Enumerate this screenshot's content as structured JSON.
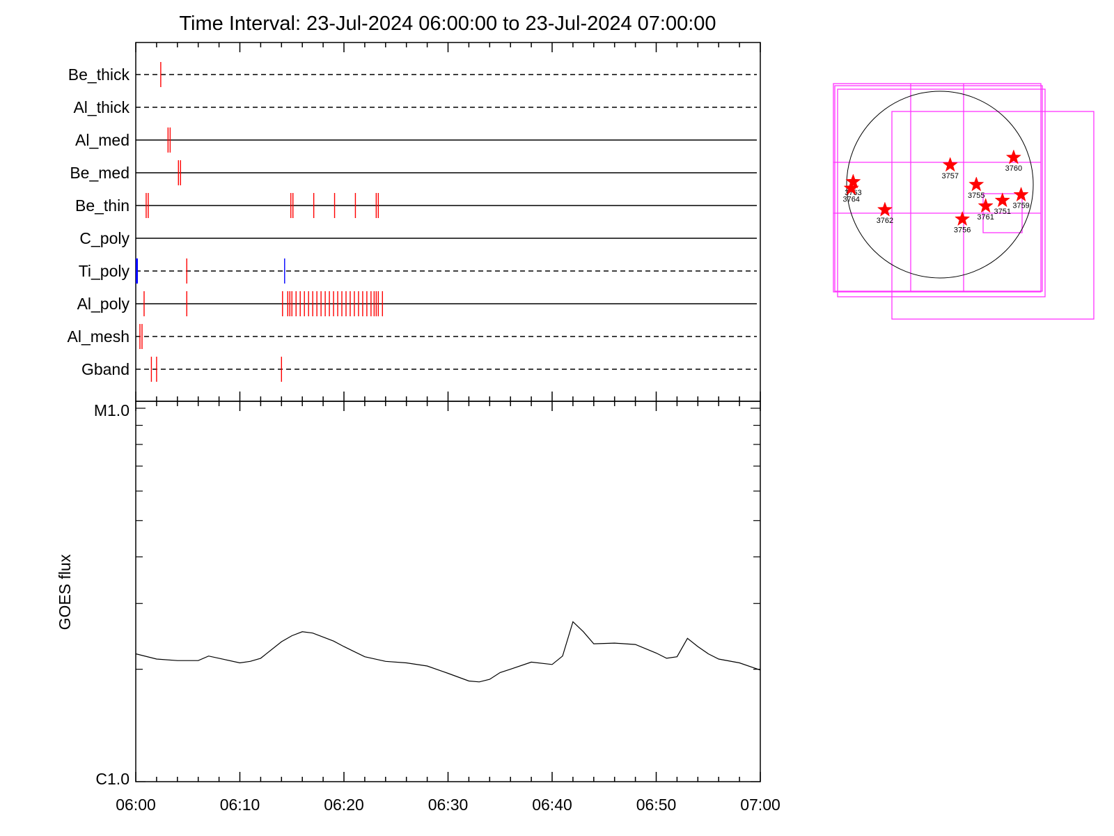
{
  "title": "Time Interval: 23-Jul-2024 06:00:00 to 23-Jul-2024 07:00:00",
  "chart_data": [
    {
      "type": "event-raster",
      "x_range_minutes": [
        0,
        60
      ],
      "x_tick_labels": [
        "06:00",
        "06:10",
        "06:20",
        "06:30",
        "06:40",
        "06:50",
        "07:00"
      ],
      "channels": [
        {
          "name": "Be_thick",
          "line": "dashed",
          "events": [
            {
              "t": 2.4,
              "color": "red"
            }
          ]
        },
        {
          "name": "Al_thick",
          "line": "dashed",
          "events": []
        },
        {
          "name": "Al_med",
          "line": "solid",
          "events": [
            {
              "t": 3.1,
              "color": "red"
            },
            {
              "t": 3.3,
              "color": "red"
            }
          ]
        },
        {
          "name": "Be_med",
          "line": "solid",
          "events": [
            {
              "t": 4.1,
              "color": "red"
            },
            {
              "t": 4.3,
              "color": "red"
            }
          ]
        },
        {
          "name": "Be_thin",
          "line": "solid",
          "events": [
            {
              "t": 1.0,
              "color": "red"
            },
            {
              "t": 1.2,
              "color": "red"
            },
            {
              "t": 14.9,
              "color": "red"
            },
            {
              "t": 15.1,
              "color": "red"
            },
            {
              "t": 17.1,
              "color": "red"
            },
            {
              "t": 19.1,
              "color": "red"
            },
            {
              "t": 21.1,
              "color": "red"
            },
            {
              "t": 23.1,
              "color": "red"
            },
            {
              "t": 23.3,
              "color": "red"
            }
          ]
        },
        {
          "name": "C_poly",
          "line": "solid",
          "events": []
        },
        {
          "name": "Ti_poly",
          "line": "dashed",
          "events": [
            {
              "t": 0.1,
              "color": "blue",
              "thick": true
            },
            {
              "t": 4.9,
              "color": "red"
            },
            {
              "t": 14.3,
              "color": "blue"
            }
          ]
        },
        {
          "name": "Al_poly",
          "line": "solid",
          "events": [
            {
              "t": 0.8,
              "color": "red"
            },
            {
              "t": 4.9,
              "color": "red"
            },
            {
              "t": 14.1,
              "color": "red"
            },
            {
              "t": 14.6,
              "color": "red"
            },
            {
              "t": 14.8,
              "color": "red"
            },
            {
              "t": 15.0,
              "color": "red"
            },
            {
              "t": 15.4,
              "color": "red"
            },
            {
              "t": 15.8,
              "color": "red"
            },
            {
              "t": 16.2,
              "color": "red"
            },
            {
              "t": 16.6,
              "color": "red"
            },
            {
              "t": 17.0,
              "color": "red"
            },
            {
              "t": 17.4,
              "color": "red"
            },
            {
              "t": 17.8,
              "color": "red"
            },
            {
              "t": 18.2,
              "color": "red"
            },
            {
              "t": 18.6,
              "color": "red"
            },
            {
              "t": 19.0,
              "color": "red"
            },
            {
              "t": 19.4,
              "color": "red"
            },
            {
              "t": 19.8,
              "color": "red"
            },
            {
              "t": 20.2,
              "color": "red"
            },
            {
              "t": 20.6,
              "color": "red"
            },
            {
              "t": 21.0,
              "color": "red"
            },
            {
              "t": 21.4,
              "color": "red"
            },
            {
              "t": 21.8,
              "color": "red"
            },
            {
              "t": 22.2,
              "color": "red"
            },
            {
              "t": 22.6,
              "color": "red"
            },
            {
              "t": 22.9,
              "color": "red"
            },
            {
              "t": 23.1,
              "color": "red"
            },
            {
              "t": 23.3,
              "color": "red"
            },
            {
              "t": 23.7,
              "color": "red"
            }
          ]
        },
        {
          "name": "Al_mesh",
          "line": "dashed",
          "events": [
            {
              "t": 0.4,
              "color": "red"
            },
            {
              "t": 0.6,
              "color": "red"
            }
          ]
        },
        {
          "name": "Gband",
          "line": "dashed",
          "events": [
            {
              "t": 1.5,
              "color": "red"
            },
            {
              "t": 2.0,
              "color": "red"
            },
            {
              "t": 14.0,
              "color": "red"
            }
          ]
        }
      ]
    },
    {
      "type": "line",
      "ylabel": "GOES flux",
      "y_scale": "log",
      "y_range": [
        1e-06,
        1e-05
      ],
      "y_tick_labels": [
        "M1.0",
        "C1.0"
      ],
      "x_range_minutes": [
        0,
        60
      ],
      "x_tick_labels": [
        "06:00",
        "06:10",
        "06:20",
        "06:30",
        "06:40",
        "06:50",
        "07:00"
      ],
      "series": [
        {
          "x_minutes": [
            0,
            2,
            4,
            6,
            7,
            8,
            10,
            11,
            12,
            14,
            15,
            16,
            17,
            18,
            19,
            20,
            22,
            24,
            26,
            28,
            30,
            32,
            33,
            34,
            35,
            36,
            38,
            40,
            41,
            42,
            43,
            44,
            46,
            48,
            50,
            51,
            52,
            53,
            54,
            55,
            56,
            58,
            60
          ],
          "y": [
            2.2e-06,
            2.13e-06,
            2.11e-06,
            2.11e-06,
            2.17e-06,
            2.14e-06,
            2.08e-06,
            2.1e-06,
            2.14e-06,
            2.37e-06,
            2.46e-06,
            2.52e-06,
            2.5e-06,
            2.44e-06,
            2.38e-06,
            2.3e-06,
            2.16e-06,
            2.1e-06,
            2.08e-06,
            2.04e-06,
            1.95e-06,
            1.86e-06,
            1.85e-06,
            1.88e-06,
            1.96e-06,
            2e-06,
            2.09e-06,
            2.06e-06,
            2.17e-06,
            2.68e-06,
            2.52e-06,
            2.34e-06,
            2.35e-06,
            2.33e-06,
            2.21e-06,
            2.14e-06,
            2.16e-06,
            2.42e-06,
            2.3e-06,
            2.2e-06,
            2.13e-06,
            2.08e-06,
            1.99e-06
          ]
        }
      ]
    },
    {
      "type": "scatter",
      "description_hint": "solar disk map",
      "disk": true,
      "points": [
        {
          "label": "3751",
          "x": 0.67,
          "y": -0.17
        },
        {
          "label": "3755",
          "x": 0.39,
          "y": 0.0
        },
        {
          "label": "3756",
          "x": 0.24,
          "y": -0.37
        },
        {
          "label": "3757",
          "x": 0.11,
          "y": 0.21
        },
        {
          "label": "3759",
          "x": 0.87,
          "y": -0.11
        },
        {
          "label": "3760",
          "x": 0.79,
          "y": 0.29
        },
        {
          "label": "3761",
          "x": 0.49,
          "y": -0.23
        },
        {
          "label": "3762",
          "x": -0.59,
          "y": -0.27
        },
        {
          "label": "3763",
          "x": -0.93,
          "y": 0.03
        },
        {
          "label": "3764",
          "x": -0.95,
          "y": -0.04
        }
      ]
    }
  ]
}
